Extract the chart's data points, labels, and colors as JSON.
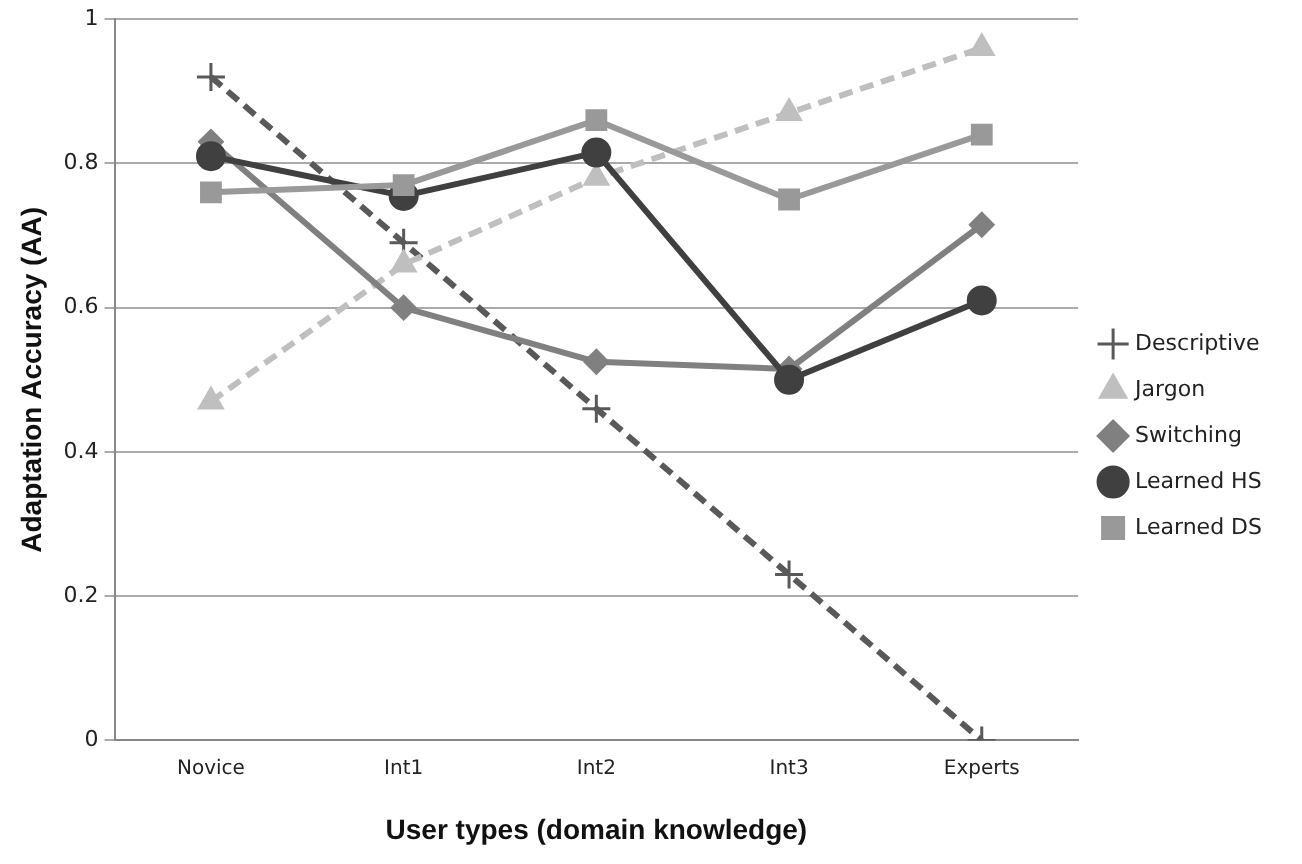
{
  "chart_data": {
    "type": "line",
    "xlabel": "User types (domain knowledge)",
    "ylabel": "Adaptation Accuracy (AA)",
    "categories": [
      "Novice",
      "Int1",
      "Int2",
      "Int3",
      "Experts"
    ],
    "series": [
      {
        "name": "Descriptive",
        "color": "#595959",
        "marker": "cross",
        "line_style": "dashed",
        "values": [
          0.92,
          0.69,
          0.46,
          0.23,
          0.0
        ]
      },
      {
        "name": "Jargon",
        "color": "#bfbfbf",
        "marker": "triangle",
        "line_style": "dashed",
        "values": [
          0.47,
          0.66,
          0.78,
          0.87,
          0.96
        ]
      },
      {
        "name": "Switching",
        "color": "#808080",
        "marker": "diamond",
        "line_style": "solid",
        "values": [
          0.83,
          0.6,
          0.525,
          0.515,
          0.715
        ]
      },
      {
        "name": "Learned HS",
        "color": "#404040",
        "marker": "circle",
        "line_style": "solid",
        "values": [
          0.81,
          0.755,
          0.815,
          0.5,
          0.61
        ]
      },
      {
        "name": "Learned DS",
        "color": "#999999",
        "marker": "square",
        "line_style": "solid",
        "values": [
          0.76,
          0.77,
          0.86,
          0.75,
          0.84
        ]
      }
    ],
    "ylim": [
      0,
      1
    ],
    "yticks": [
      0,
      0.2,
      0.4,
      0.6,
      0.8,
      1
    ],
    "grid": "y",
    "legend": "right"
  }
}
